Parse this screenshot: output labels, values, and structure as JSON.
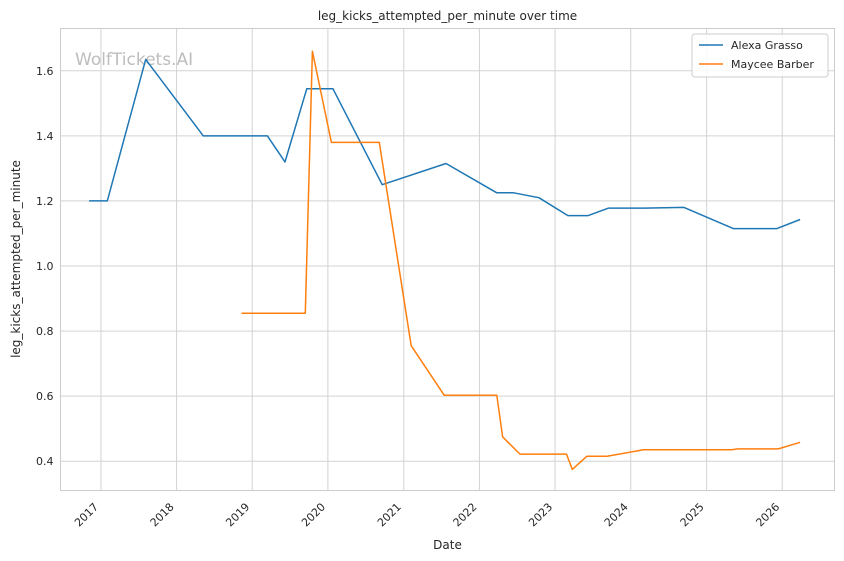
{
  "chart_data": {
    "type": "line",
    "title": "leg_kicks_attempted_per_minute over time",
    "xlabel": "Date",
    "ylabel": "leg_kicks_attempted_per_minute",
    "watermark": "WolfTickets.AI",
    "xlim": [
      "2016-06-20",
      "2026-09-10"
    ],
    "ylim": [
      0.31,
      1.73
    ],
    "x_ticks": [
      "2017",
      "2018",
      "2019",
      "2020",
      "2021",
      "2022",
      "2023",
      "2024",
      "2025",
      "2026"
    ],
    "y_ticks": [
      0.4,
      0.6,
      0.8,
      1.0,
      1.2,
      1.4,
      1.6
    ],
    "grid": true,
    "legend_position": "top-right",
    "series": [
      {
        "name": "Alexa Grasso",
        "color": "#1f77b4",
        "points": [
          [
            "2016-11-05",
            1.2
          ],
          [
            "2017-02-01",
            1.2
          ],
          [
            "2017-08-05",
            1.635
          ],
          [
            "2018-05-10",
            1.4
          ],
          [
            "2019-03-15",
            1.4
          ],
          [
            "2019-06-08",
            1.32
          ],
          [
            "2019-09-21",
            1.545
          ],
          [
            "2020-01-25",
            1.545
          ],
          [
            "2020-09-19",
            1.25
          ],
          [
            "2021-07-24",
            1.315
          ],
          [
            "2022-03-26",
            1.225
          ],
          [
            "2022-06-15",
            1.225
          ],
          [
            "2022-10-15",
            1.21
          ],
          [
            "2023-03-04",
            1.155
          ],
          [
            "2023-06-10",
            1.155
          ],
          [
            "2023-09-16",
            1.178
          ],
          [
            "2024-03-09",
            1.178
          ],
          [
            "2024-09-14",
            1.18
          ],
          [
            "2025-05-10",
            1.115
          ],
          [
            "2025-12-06",
            1.115
          ],
          [
            "2026-03-28",
            1.143
          ]
        ]
      },
      {
        "name": "Maycee Barber",
        "color": "#ff7f0e",
        "points": [
          [
            "2018-11-10",
            0.855
          ],
          [
            "2019-09-14",
            0.855
          ],
          [
            "2019-10-18",
            1.66
          ],
          [
            "2020-01-18",
            1.38
          ],
          [
            "2020-09-05",
            1.38
          ],
          [
            "2021-02-06",
            0.755
          ],
          [
            "2021-07-15",
            0.603
          ],
          [
            "2022-03-26",
            0.603
          ],
          [
            "2022-04-23",
            0.475
          ],
          [
            "2022-07-16",
            0.422
          ],
          [
            "2023-02-25",
            0.422
          ],
          [
            "2023-03-25",
            0.375
          ],
          [
            "2023-06-03",
            0.415
          ],
          [
            "2023-09-09",
            0.415
          ],
          [
            "2024-03-02",
            0.435
          ],
          [
            "2025-05-03",
            0.435
          ],
          [
            "2025-05-31",
            0.438
          ],
          [
            "2025-12-13",
            0.438
          ],
          [
            "2026-03-28",
            0.458
          ]
        ]
      }
    ]
  }
}
